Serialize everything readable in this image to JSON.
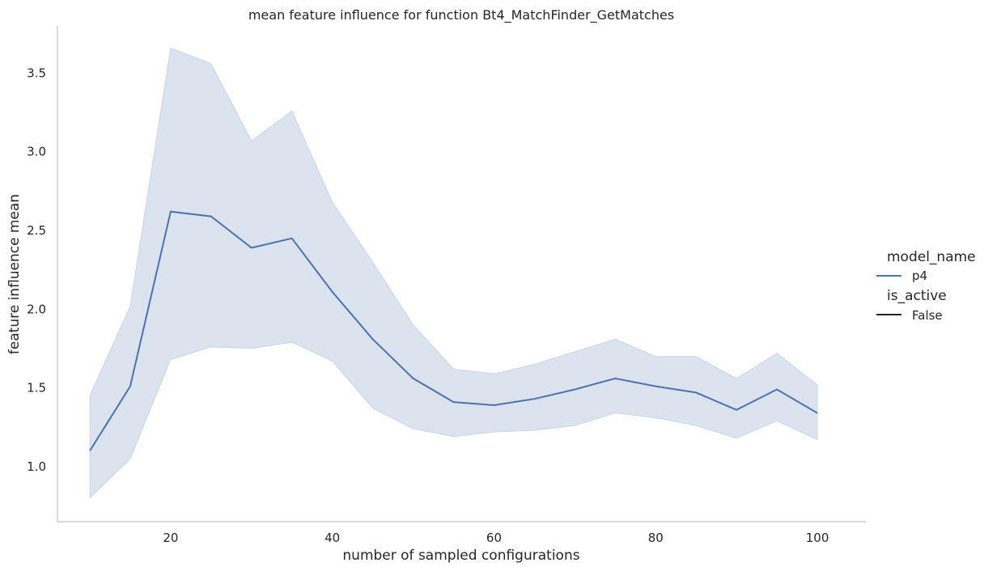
{
  "chart_data": {
    "type": "line",
    "title": "mean feature influence for function Bt4_MatchFinder_GetMatches",
    "xlabel": "number of sampled configurations",
    "ylabel": "feature influence mean",
    "xlim": [
      6,
      106
    ],
    "ylim": [
      0.65,
      3.8
    ],
    "xticks": [
      20,
      40,
      60,
      80,
      100
    ],
    "yticks": [
      1.0,
      1.5,
      2.0,
      2.5,
      3.0,
      3.5
    ],
    "grid": false,
    "legend_position": "right",
    "x": [
      10,
      15,
      20,
      25,
      30,
      35,
      40,
      45,
      50,
      55,
      60,
      65,
      70,
      75,
      80,
      85,
      90,
      95,
      100
    ],
    "series": [
      {
        "name": "p4",
        "color": "#4c72b0",
        "values": [
          1.1,
          1.51,
          2.62,
          2.59,
          2.39,
          2.45,
          2.11,
          1.81,
          1.56,
          1.41,
          1.39,
          1.43,
          1.49,
          1.56,
          1.51,
          1.47,
          1.36,
          1.49,
          1.34
        ],
        "ci_lower": [
          0.8,
          1.05,
          1.68,
          1.76,
          1.75,
          1.79,
          1.67,
          1.37,
          1.24,
          1.19,
          1.22,
          1.23,
          1.26,
          1.34,
          1.31,
          1.26,
          1.18,
          1.29,
          1.17
        ],
        "ci_upper": [
          1.45,
          2.02,
          3.66,
          3.56,
          3.07,
          3.26,
          2.68,
          2.3,
          1.9,
          1.62,
          1.59,
          1.65,
          1.73,
          1.81,
          1.7,
          1.7,
          1.56,
          1.72,
          1.52
        ]
      }
    ],
    "legend": {
      "hue_title": "model_name",
      "hue_entries": [
        {
          "label": "p4",
          "color": "#4c72b0"
        }
      ],
      "style_title": "is_active",
      "style_entries": [
        {
          "label": "False",
          "color": "#262626"
        }
      ]
    }
  }
}
